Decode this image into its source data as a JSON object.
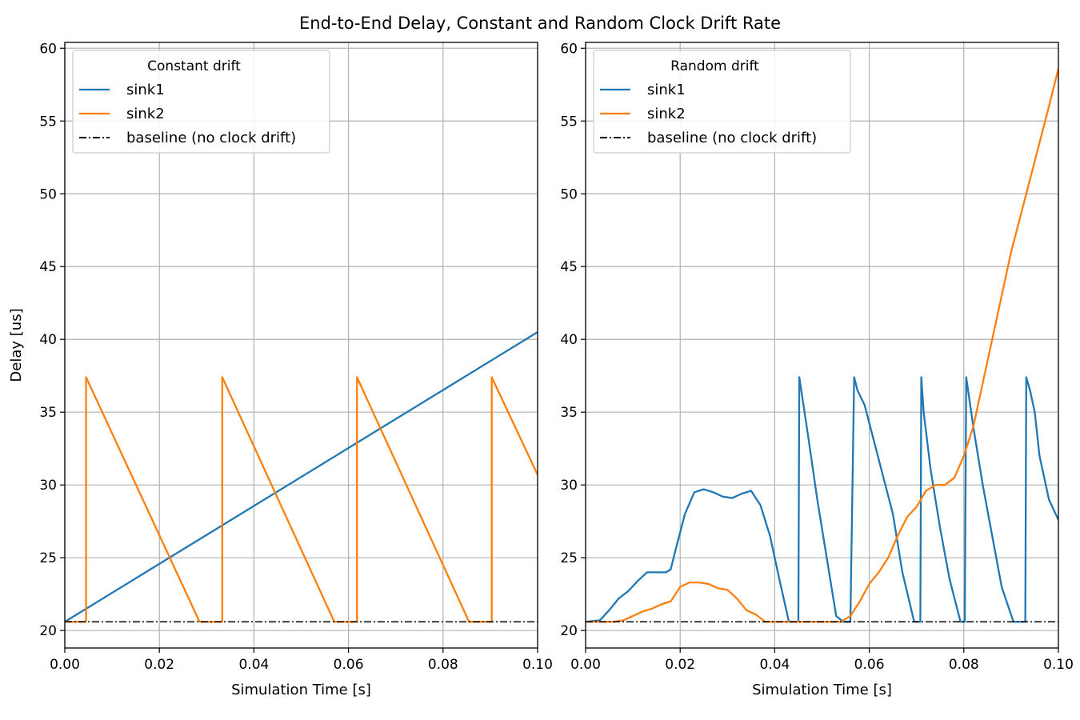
{
  "figure": {
    "suptitle": "End-to-End Delay, Constant and Random Clock Drift Rate",
    "colors": {
      "sink1": "#1f77b4",
      "sink2": "#ff7f0e",
      "baseline": "#000000"
    }
  },
  "chart_data": [
    {
      "type": "line",
      "title": "",
      "legend_title": "Constant drift",
      "legend_position": "top-left",
      "xlabel": "Simulation Time [s]",
      "ylabel": "Delay [us]",
      "xlim": [
        0.0,
        0.1
      ],
      "ylim": [
        18.8,
        60.4
      ],
      "grid": true,
      "xticks": [
        "0.00",
        "0.02",
        "0.04",
        "0.06",
        "0.08",
        "0.10"
      ],
      "yticks": [
        "20",
        "25",
        "30",
        "35",
        "40",
        "45",
        "50",
        "55",
        "60"
      ],
      "series": [
        {
          "name": "sink1",
          "color": "#1f77b4",
          "style": "solid",
          "x": [
            0.0,
            0.1
          ],
          "y": [
            20.6,
            40.5
          ]
        },
        {
          "name": "sink2",
          "color": "#ff7f0e",
          "style": "solid",
          "x": [
            0.0,
            0.0045,
            0.0045,
            0.0285,
            0.0333,
            0.0333,
            0.057,
            0.0618,
            0.0618,
            0.0855,
            0.0903,
            0.0903,
            0.1
          ],
          "y": [
            20.6,
            20.6,
            37.4,
            20.6,
            20.6,
            37.4,
            20.6,
            20.6,
            37.4,
            20.6,
            20.6,
            37.4,
            30.7
          ]
        },
        {
          "name": "baseline (no clock drift)",
          "color": "#000000",
          "style": "dashdot",
          "x": [
            0.0,
            0.1
          ],
          "y": [
            20.6,
            20.6
          ]
        }
      ]
    },
    {
      "type": "line",
      "title": "",
      "legend_title": "Random drift",
      "legend_position": "top-left",
      "xlabel": "Simulation Time [s]",
      "ylabel": "",
      "xlim": [
        0.0,
        0.1
      ],
      "ylim": [
        18.8,
        60.4
      ],
      "grid": true,
      "xticks": [
        "0.00",
        "0.02",
        "0.04",
        "0.06",
        "0.08",
        "0.10"
      ],
      "yticks": [
        "20",
        "25",
        "30",
        "35",
        "40",
        "45",
        "50",
        "55",
        "60"
      ],
      "series": [
        {
          "name": "sink1",
          "color": "#1f77b4",
          "style": "solid",
          "x": [
            0.0,
            0.003,
            0.005,
            0.007,
            0.009,
            0.011,
            0.013,
            0.015,
            0.017,
            0.018,
            0.019,
            0.021,
            0.023,
            0.025,
            0.027,
            0.029,
            0.031,
            0.033,
            0.035,
            0.037,
            0.039,
            0.041,
            0.043,
            0.045,
            0.0452,
            0.047,
            0.049,
            0.051,
            0.053,
            0.0545,
            0.056,
            0.0568,
            0.0575,
            0.059,
            0.061,
            0.063,
            0.065,
            0.067,
            0.0695,
            0.0708,
            0.071,
            0.0715,
            0.073,
            0.075,
            0.077,
            0.0793,
            0.0802,
            0.0805,
            0.082,
            0.084,
            0.086,
            0.088,
            0.0905,
            0.093,
            0.0932,
            0.094,
            0.095,
            0.096,
            0.098,
            0.1
          ],
          "y": [
            20.6,
            20.7,
            21.4,
            22.2,
            22.7,
            23.4,
            24.0,
            24.0,
            24.0,
            24.2,
            25.5,
            28.0,
            29.5,
            29.7,
            29.5,
            29.2,
            29.1,
            29.4,
            29.6,
            28.6,
            26.5,
            23.5,
            20.6,
            20.6,
            37.4,
            33.5,
            29.0,
            25.0,
            21.0,
            20.6,
            20.6,
            37.4,
            36.5,
            35.5,
            33.0,
            30.5,
            28.0,
            24.0,
            20.6,
            20.6,
            37.4,
            35.0,
            31.0,
            27.0,
            23.5,
            20.6,
            20.6,
            37.4,
            34.0,
            30.0,
            26.5,
            23.0,
            20.6,
            20.6,
            37.4,
            36.5,
            35.0,
            32.0,
            29.0,
            27.6
          ]
        },
        {
          "name": "sink2",
          "color": "#ff7f0e",
          "style": "solid",
          "x": [
            0.0,
            0.003,
            0.006,
            0.008,
            0.01,
            0.012,
            0.014,
            0.016,
            0.018,
            0.02,
            0.022,
            0.024,
            0.026,
            0.028,
            0.03,
            0.032,
            0.034,
            0.036,
            0.038,
            0.042,
            0.046,
            0.05,
            0.054,
            0.056,
            0.058,
            0.06,
            0.062,
            0.064,
            0.066,
            0.068,
            0.07,
            0.072,
            0.074,
            0.076,
            0.078,
            0.08,
            0.082,
            0.084,
            0.086,
            0.088,
            0.09,
            0.092,
            0.094,
            0.096,
            0.098,
            0.1
          ],
          "y": [
            20.6,
            20.6,
            20.6,
            20.7,
            21.0,
            21.3,
            21.5,
            21.8,
            22.0,
            23.0,
            23.3,
            23.3,
            23.2,
            22.9,
            22.8,
            22.2,
            21.4,
            21.1,
            20.6,
            20.6,
            20.6,
            20.6,
            20.6,
            21.0,
            22.0,
            23.2,
            24.0,
            25.0,
            26.5,
            27.8,
            28.5,
            29.6,
            30.0,
            30.0,
            30.5,
            32.0,
            34.0,
            37.0,
            40.0,
            43.0,
            46.0,
            48.5,
            51.0,
            53.5,
            56.0,
            58.6
          ]
        },
        {
          "name": "baseline (no clock drift)",
          "color": "#000000",
          "style": "dashdot",
          "x": [
            0.0,
            0.1
          ],
          "y": [
            20.6,
            20.6
          ]
        }
      ]
    }
  ]
}
